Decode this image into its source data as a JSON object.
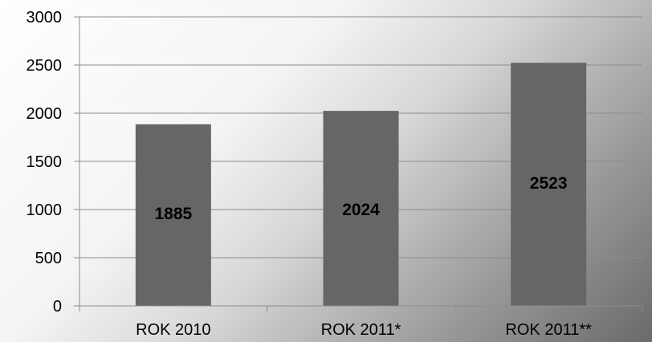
{
  "chart_data": {
    "type": "bar",
    "categories": [
      "ROK 2010",
      "ROK 2011*",
      "ROK 2011**"
    ],
    "values": [
      1885,
      2024,
      2523
    ],
    "data_labels": [
      "1885",
      "2024",
      "2523"
    ],
    "yticks": [
      "0",
      "500",
      "1000",
      "1500",
      "2000",
      "2500",
      "3000"
    ],
    "ylim": [
      0,
      3000
    ],
    "grid": true,
    "legend": "none",
    "title": "",
    "xlabel": "",
    "ylabel": ""
  },
  "colors": {
    "bar": "#666666",
    "gridline": "#8c8c8c",
    "axis": "#8c8c8c"
  }
}
